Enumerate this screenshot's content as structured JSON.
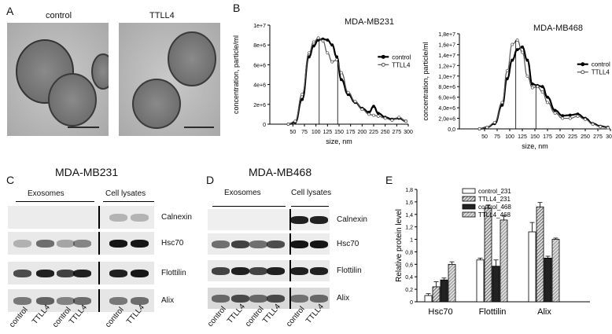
{
  "panels": {
    "a": {
      "letter": "A",
      "images": [
        {
          "label": "control"
        },
        {
          "label": "TTLL4"
        }
      ]
    },
    "b": {
      "letter": "B",
      "ylabel": "concentration, particle/ml",
      "xlabel": "size, nm"
    },
    "c": {
      "letter": "C",
      "title": "MDA-MB231",
      "group_exo": "Exosomes",
      "group_lys": "Cell lysates",
      "rows": [
        "Calnexin",
        "Hsc70",
        "Flottilin",
        "Alix"
      ],
      "lanes": [
        "control",
        "TTLL4",
        "control",
        "TTLL4",
        "control",
        "TTLL4"
      ]
    },
    "d": {
      "letter": "D",
      "title": "MDA-MB468",
      "group_exo": "Exosomes",
      "group_lys": "Cell lysates",
      "rows": [
        "Calnexin",
        "Hsc70",
        "Flottilin",
        "Alix"
      ],
      "lanes": [
        "control",
        "TTLL4",
        "control",
        "TTLL4",
        "control",
        "TTLL4"
      ]
    },
    "e": {
      "letter": "E"
    }
  },
  "chart_data": [
    {
      "type": "line",
      "title": "MDA-MB231",
      "xlabel": "size, nm",
      "ylabel": "concentration, particle/ml",
      "xlim": [
        0,
        300
      ],
      "ylim": [
        0,
        10000000
      ],
      "xticks": [
        "50",
        "75",
        "100",
        "125",
        "150",
        "175",
        "200",
        "225",
        "250",
        "275",
        "300"
      ],
      "yticks": [
        "0",
        "2e+6",
        "4e+6",
        "6e+6",
        "8e+6",
        "1e+7"
      ],
      "legend": "right",
      "series": [
        {
          "name": "control",
          "x": [
            40,
            55,
            70,
            85,
            95,
            105,
            115,
            125,
            135,
            145,
            155,
            170,
            185,
            200,
            215,
            225,
            235,
            250,
            265,
            280,
            295
          ],
          "y": [
            0,
            200000,
            2500000,
            6800000,
            7900000,
            8500000,
            8600000,
            8500000,
            8000000,
            6800000,
            4500000,
            3000000,
            2200000,
            1600000,
            1200000,
            1800000,
            1100000,
            700000,
            500000,
            600000,
            300000
          ]
        },
        {
          "name": "TTLL4",
          "x": [
            40,
            55,
            70,
            85,
            95,
            105,
            115,
            125,
            135,
            145,
            155,
            170,
            185,
            200,
            215,
            225,
            235,
            250,
            265,
            280,
            295
          ],
          "y": [
            0,
            300000,
            3000000,
            7200000,
            8300000,
            8700000,
            8400000,
            7200000,
            6300000,
            6500000,
            5200000,
            3200000,
            2300000,
            1500000,
            1000000,
            900000,
            800000,
            600000,
            400000,
            700000,
            300000
          ]
        }
      ]
    },
    {
      "type": "line",
      "title": "MDA-MB468",
      "xlabel": "size, nm",
      "ylabel": "concentration, particle/ml",
      "xlim": [
        0,
        300
      ],
      "ylim": [
        0,
        18000000
      ],
      "xticks": [
        "50",
        "75",
        "100",
        "125",
        "150",
        "175",
        "200",
        "225",
        "250",
        "275",
        "300"
      ],
      "yticks": [
        "0,0",
        "2,0e+6",
        "4,0e+6",
        "6,0e+6",
        "8,0e+6",
        "1,0e+7",
        "1,2e+7",
        "1,4e+7",
        "1,6e+7",
        "1,8e+7"
      ],
      "legend": "right",
      "series": [
        {
          "name": "control",
          "x": [
            40,
            55,
            70,
            85,
            95,
            105,
            115,
            125,
            135,
            145,
            155,
            165,
            175,
            190,
            205,
            220,
            235,
            250,
            265,
            280,
            295
          ],
          "y": [
            0,
            300000,
            1000000,
            4500000,
            9500000,
            13000000,
            15000000,
            15500000,
            13000000,
            8500000,
            8200000,
            8000000,
            6000000,
            3500000,
            2500000,
            2600000,
            2800000,
            2000000,
            1000000,
            500000,
            300000
          ]
        },
        {
          "name": "TTLL4",
          "x": [
            40,
            55,
            70,
            85,
            95,
            105,
            115,
            125,
            135,
            145,
            155,
            165,
            175,
            190,
            205,
            220,
            235,
            250,
            265,
            280,
            295
          ],
          "y": [
            0,
            300000,
            1200000,
            5000000,
            11000000,
            16000000,
            16800000,
            14500000,
            10000000,
            7800000,
            8000000,
            7000000,
            5000000,
            3000000,
            2000000,
            2000000,
            2400000,
            1800000,
            900000,
            400000,
            200000
          ]
        }
      ]
    },
    {
      "type": "bar",
      "title": "",
      "xlabel": "",
      "ylabel": "Relative protein level",
      "ylim": [
        0,
        1.8
      ],
      "yticks": [
        "0",
        "0,2",
        "0,4",
        "0,6",
        "0,8",
        "1",
        "1,2",
        "1,4",
        "1,6",
        "1,8"
      ],
      "categories": [
        "Hsc70",
        "Flottilin",
        "Alix"
      ],
      "legend": "top-right",
      "series": [
        {
          "name": "control_231",
          "values": [
            0.1,
            0.67,
            1.12
          ],
          "errors": [
            0.03,
            0.03,
            0.15
          ],
          "color": "#ffffff"
        },
        {
          "name": "TTLL4_231",
          "values": [
            0.24,
            1.5,
            1.52
          ],
          "errors": [
            0.08,
            0.05,
            0.07
          ],
          "color": "#bdbdbd"
        },
        {
          "name": "control_468",
          "values": [
            0.35,
            0.57,
            0.7
          ],
          "errors": [
            0.03,
            0.1,
            0.03
          ],
          "color": "#222222"
        },
        {
          "name": "TTLL4_468",
          "values": [
            0.6,
            1.31,
            1.0
          ],
          "errors": [
            0.04,
            0.07,
            0.02
          ],
          "color": "#999999"
        }
      ]
    }
  ]
}
